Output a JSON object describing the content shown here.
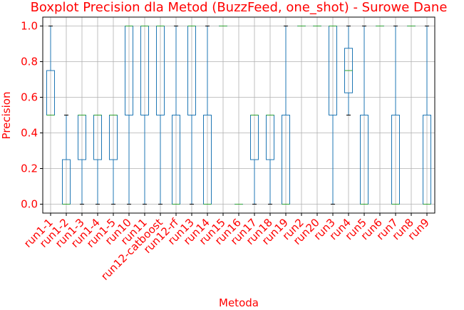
{
  "chart_data": {
    "type": "boxplot",
    "title": "Boxplot Precision dla Metod (BuzzFeed, one_shot) - Surowe Dane",
    "xlabel": "Metoda",
    "ylabel": "Precision",
    "ylim": [
      -0.05,
      1.05
    ],
    "yticks": [
      0.0,
      0.2,
      0.4,
      0.6,
      0.8,
      1.0
    ],
    "ytick_labels": [
      "0.0",
      "0.2",
      "0.4",
      "0.6",
      "0.8",
      "1.0"
    ],
    "grid": true,
    "colors": {
      "text": "#ff0000",
      "box": "#1f77b4",
      "median": "#2ca02c",
      "cap": "#000000",
      "grid": "#b0b0b0"
    },
    "categories": [
      "run1-1",
      "run1-2",
      "run1-3",
      "run1-4",
      "run1-5",
      "run10",
      "run11",
      "run12-catboost",
      "run12-rf",
      "run13",
      "run14",
      "run15",
      "run16",
      "run17",
      "run18",
      "run19",
      "run2",
      "run20",
      "run3",
      "run4",
      "run5",
      "run6",
      "run7",
      "run8",
      "run9"
    ],
    "boxes": [
      {
        "min": 0.5,
        "q1": 0.5,
        "median": 0.5,
        "q3": 0.75,
        "max": 1.0
      },
      {
        "min": 0.0,
        "q1": 0.0,
        "median": 0.0,
        "q3": 0.25,
        "max": 0.5
      },
      {
        "min": 0.0,
        "q1": 0.25,
        "median": 0.5,
        "q3": 0.5,
        "max": 0.5
      },
      {
        "min": 0.0,
        "q1": 0.25,
        "median": 0.5,
        "q3": 0.5,
        "max": 0.5
      },
      {
        "min": 0.0,
        "q1": 0.25,
        "median": 0.5,
        "q3": 0.5,
        "max": 0.5
      },
      {
        "min": 0.0,
        "q1": 0.5,
        "median": 1.0,
        "q3": 1.0,
        "max": 1.0
      },
      {
        "min": 0.0,
        "q1": 0.5,
        "median": 1.0,
        "q3": 1.0,
        "max": 1.0
      },
      {
        "min": 0.0,
        "q1": 0.5,
        "median": 1.0,
        "q3": 1.0,
        "max": 1.0
      },
      {
        "min": 0.0,
        "q1": 0.0,
        "median": 0.0,
        "q3": 0.5,
        "max": 1.0
      },
      {
        "min": 0.0,
        "q1": 0.5,
        "median": 1.0,
        "q3": 1.0,
        "max": 1.0
      },
      {
        "min": 0.0,
        "q1": 0.0,
        "median": 0.0,
        "q3": 0.5,
        "max": 1.0
      },
      {
        "min": 1.0,
        "q1": 1.0,
        "median": 1.0,
        "q3": 1.0,
        "max": 1.0
      },
      {
        "min": 0.0,
        "q1": 0.0,
        "median": 0.0,
        "q3": 0.0,
        "max": 0.0
      },
      {
        "min": 0.0,
        "q1": 0.25,
        "median": 0.5,
        "q3": 0.5,
        "max": 0.5
      },
      {
        "min": 0.0,
        "q1": 0.25,
        "median": 0.5,
        "q3": 0.5,
        "max": 0.5
      },
      {
        "min": 0.0,
        "q1": 0.0,
        "median": 0.0,
        "q3": 0.5,
        "max": 1.0
      },
      {
        "min": 1.0,
        "q1": 1.0,
        "median": 1.0,
        "q3": 1.0,
        "max": 1.0
      },
      {
        "min": 1.0,
        "q1": 1.0,
        "median": 1.0,
        "q3": 1.0,
        "max": 1.0
      },
      {
        "min": 0.0,
        "q1": 0.5,
        "median": 1.0,
        "q3": 1.0,
        "max": 1.0
      },
      {
        "min": 0.5,
        "q1": 0.625,
        "median": 0.75,
        "q3": 0.875,
        "max": 1.0
      },
      {
        "min": 0.0,
        "q1": 0.0,
        "median": 0.0,
        "q3": 0.5,
        "max": 1.0
      },
      {
        "min": 1.0,
        "q1": 1.0,
        "median": 1.0,
        "q3": 1.0,
        "max": 1.0
      },
      {
        "min": 0.0,
        "q1": 0.0,
        "median": 0.0,
        "q3": 0.5,
        "max": 1.0
      },
      {
        "min": 1.0,
        "q1": 1.0,
        "median": 1.0,
        "q3": 1.0,
        "max": 1.0
      },
      {
        "min": 0.0,
        "q1": 0.0,
        "median": 0.0,
        "q3": 0.5,
        "max": 1.0
      }
    ]
  }
}
